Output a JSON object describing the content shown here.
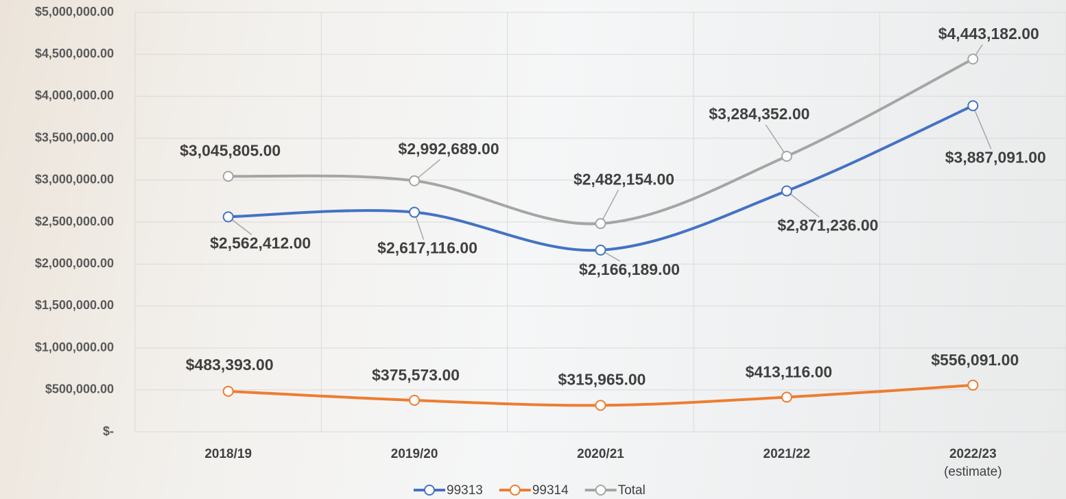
{
  "chart_data": {
    "type": "line",
    "categories": [
      "2018/19",
      "2019/20",
      "2020/21",
      "2021/22",
      "2022/23\n(estimate)"
    ],
    "series": [
      {
        "name": "99313",
        "color": "#4472c4",
        "values": [
          2562412,
          2617116,
          2166189,
          2871236,
          3887091
        ],
        "value_labels": [
          "$2,562,412.00",
          "$2,617,116.00",
          "$2,166,189.00",
          "$2,871,236.00",
          "$3,887,091.00"
        ]
      },
      {
        "name": "99314",
        "color": "#ed7d31",
        "values": [
          483393,
          375573,
          315965,
          413116,
          556091
        ],
        "value_labels": [
          "$483,393.00",
          "$375,573.00",
          "$315,965.00",
          "$413,116.00",
          "$556,091.00"
        ]
      },
      {
        "name": "Total",
        "color": "#a5a5a5",
        "values": [
          3045805,
          2992689,
          2482154,
          3284352,
          4443182
        ],
        "value_labels": [
          "$3,045,805.00",
          "$2,992,689.00",
          "$2,482,154.00",
          "$3,284,352.00",
          "$4,443,182.00"
        ]
      }
    ],
    "ylim": [
      0,
      5000000
    ],
    "yticks": [
      {
        "value": 0,
        "label": "$-"
      },
      {
        "value": 500000,
        "label": "$500,000.00"
      },
      {
        "value": 1000000,
        "label": "$1,000,000.00"
      },
      {
        "value": 1500000,
        "label": "$1,500,000.00"
      },
      {
        "value": 2000000,
        "label": "$2,000,000.00"
      },
      {
        "value": 2500000,
        "label": "$2,500,000.00"
      },
      {
        "value": 3000000,
        "label": "$3,000,000.00"
      },
      {
        "value": 3500000,
        "label": "$3,500,000.00"
      },
      {
        "value": 4000000,
        "label": "$4,000,000.00"
      },
      {
        "value": 4500000,
        "label": "$4,500,000.00"
      },
      {
        "value": 5000000,
        "label": "$5,000,000.00"
      }
    ],
    "grid": true,
    "legend": "bottom"
  }
}
